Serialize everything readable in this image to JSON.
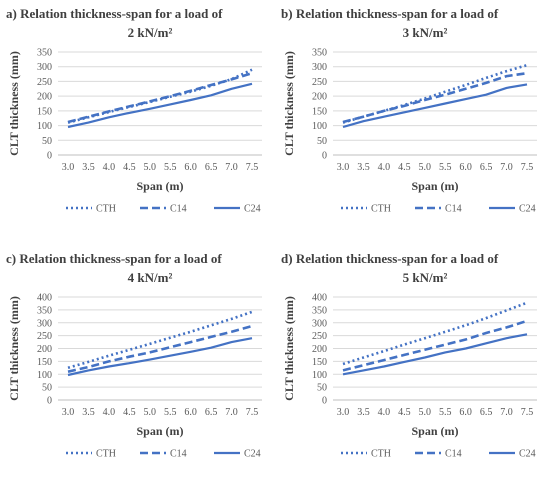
{
  "colors": {
    "line": "#4472C4",
    "grid": "#D9D9D9",
    "text": "#404040",
    "tick": "#595959"
  },
  "chart_data": [
    {
      "type": "line",
      "letter": "a)",
      "title_line1": "Relation thickness-span for a load of",
      "title_line2": "2 kN/m²",
      "xlabel": "Span (m)",
      "ylabel": "CLT thickness (mm)",
      "ylim": [
        0,
        350
      ],
      "yticks": [
        0,
        50,
        100,
        150,
        200,
        250,
        300,
        350
      ],
      "x": [
        3.0,
        3.5,
        4.0,
        4.5,
        5.0,
        5.5,
        6.0,
        6.5,
        7.0,
        7.5
      ],
      "x_labels": [
        "3.0",
        "3.5",
        "4.0",
        "4.5",
        "5.0",
        "5.5",
        "6.0",
        "6.5",
        "7.0",
        "7.5"
      ],
      "grid": true,
      "legend_position": "bottom",
      "series": [
        {
          "name": "CTH",
          "style": "dotted",
          "values": [
            110,
            128,
            146,
            163,
            180,
            198,
            215,
            235,
            258,
            290
          ]
        },
        {
          "name": "C14",
          "style": "dashed",
          "values": [
            112,
            130,
            148,
            165,
            182,
            200,
            218,
            238,
            257,
            278
          ]
        },
        {
          "name": "C24",
          "style": "solid",
          "values": [
            95,
            110,
            128,
            143,
            157,
            172,
            187,
            203,
            225,
            242
          ]
        }
      ]
    },
    {
      "type": "line",
      "letter": "b)",
      "title_line1": "Relation thickness-span for a load of",
      "title_line2": "3 kN/m²",
      "xlabel": "Span (m)",
      "ylabel": "CLT thickness (mm)",
      "ylim": [
        0,
        350
      ],
      "yticks": [
        0,
        50,
        100,
        150,
        200,
        250,
        300,
        350
      ],
      "x": [
        3.0,
        3.5,
        4.0,
        4.5,
        5.0,
        5.5,
        6.0,
        6.5,
        7.0,
        7.5
      ],
      "x_labels": [
        "3.0",
        "3.5",
        "4.0",
        "4.5",
        "5.0",
        "5.5",
        "6.0",
        "6.5",
        "7.0",
        "7.5"
      ],
      "grid": true,
      "legend_position": "bottom",
      "series": [
        {
          "name": "CTH",
          "style": "dotted",
          "values": [
            110,
            130,
            150,
            170,
            192,
            215,
            238,
            262,
            285,
            305
          ]
        },
        {
          "name": "C14",
          "style": "dashed",
          "values": [
            112,
            130,
            150,
            167,
            187,
            205,
            225,
            245,
            268,
            278
          ]
        },
        {
          "name": "C24",
          "style": "solid",
          "values": [
            95,
            115,
            130,
            145,
            160,
            175,
            190,
            205,
            228,
            240
          ]
        }
      ]
    },
    {
      "type": "line",
      "letter": "c)",
      "title_line1": "Relation thickness-span for a load of",
      "title_line2": "4 kN/m²",
      "xlabel": "Span (m)",
      "ylabel": "CLT thickness (mm)",
      "ylim": [
        0,
        400
      ],
      "yticks": [
        0,
        50,
        100,
        150,
        200,
        250,
        300,
        350,
        400
      ],
      "x": [
        3.0,
        3.5,
        4.0,
        4.5,
        5.0,
        5.5,
        6.0,
        6.5,
        7.0,
        7.5
      ],
      "x_labels": [
        "3.0",
        "3.5",
        "4.0",
        "4.5",
        "5.0",
        "5.5",
        "6.0",
        "6.5",
        "7.0",
        "7.5"
      ],
      "grid": true,
      "legend_position": "bottom",
      "series": [
        {
          "name": "CTH",
          "style": "dotted",
          "values": [
            125,
            148,
            172,
            195,
            218,
            242,
            265,
            290,
            315,
            342
          ]
        },
        {
          "name": "C14",
          "style": "dashed",
          "values": [
            110,
            128,
            150,
            168,
            185,
            205,
            225,
            245,
            265,
            287
          ]
        },
        {
          "name": "C24",
          "style": "solid",
          "values": [
            97,
            115,
            130,
            143,
            157,
            172,
            187,
            203,
            225,
            240
          ]
        }
      ]
    },
    {
      "type": "line",
      "letter": "d)",
      "title_line1": "Relation thickness-span for a load of",
      "title_line2": "5 kN/m²",
      "xlabel": "Span (m)",
      "ylabel": "CLT thickness (mm)",
      "ylim": [
        0,
        400
      ],
      "yticks": [
        0,
        50,
        100,
        150,
        200,
        250,
        300,
        350,
        400
      ],
      "x": [
        3.0,
        3.5,
        4.0,
        4.5,
        5.0,
        5.5,
        6.0,
        6.5,
        7.0,
        7.5
      ],
      "x_labels": [
        "3.0",
        "3.5",
        "4.0",
        "4.5",
        "5.0",
        "5.5",
        "6.0",
        "6.5",
        "7.0",
        "7.5"
      ],
      "grid": true,
      "legend_position": "bottom",
      "series": [
        {
          "name": "CTH",
          "style": "dotted",
          "values": [
            140,
            165,
            190,
            215,
            240,
            265,
            290,
            318,
            348,
            378
          ]
        },
        {
          "name": "C14",
          "style": "dashed",
          "values": [
            115,
            135,
            155,
            175,
            195,
            215,
            235,
            260,
            282,
            307
          ]
        },
        {
          "name": "C24",
          "style": "solid",
          "values": [
            100,
            115,
            130,
            148,
            165,
            185,
            200,
            220,
            240,
            255
          ]
        }
      ]
    }
  ]
}
